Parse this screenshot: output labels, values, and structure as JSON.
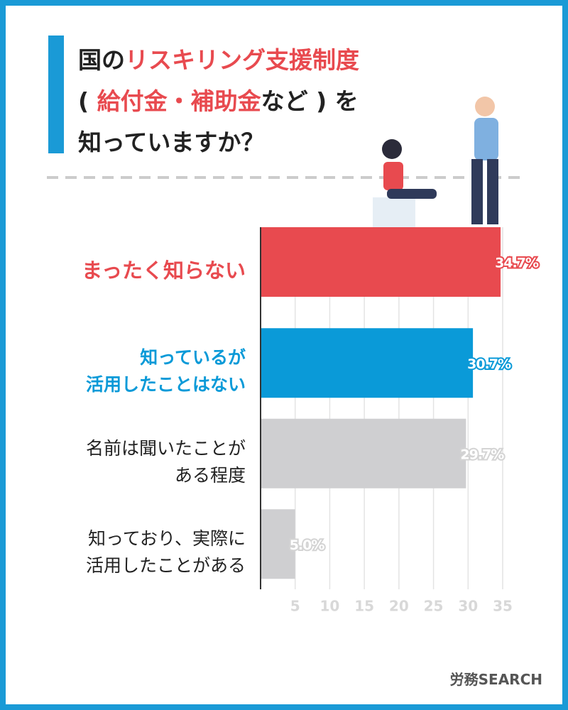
{
  "title_lines": [
    [
      {
        "text": "国の",
        "highlight": false
      },
      {
        "text": "リスキリング支援制度",
        "highlight": true
      }
    ],
    [
      {
        "text": "( ",
        "highlight": false
      },
      {
        "text": "給付金・補助金",
        "highlight": true
      },
      {
        "text": "など ) を",
        "highlight": false
      }
    ],
    [
      {
        "text": "知っていますか？",
        "highlight": false
      }
    ]
  ],
  "highlight_color": "#e84a4f",
  "chart_data": {
    "type": "hbar",
    "categories": [
      "まったく知らない",
      "知っているが\n活用したことはない",
      "名前は聞いたことが\nある程度",
      "知っており、実際に\n活用したことがある"
    ],
    "values": [
      34.7,
      30.7,
      29.7,
      5.0
    ],
    "value_labels": [
      "34.7%",
      "30.7%",
      "29.7%",
      "5.0%"
    ],
    "colors": [
      "#e84a4f",
      "#0a9ad8",
      "#cfcfd1",
      "#cfcfd1"
    ],
    "label_colors": [
      "#e84a4f",
      "#0a9ad8",
      "#222222",
      "#222222"
    ],
    "xlim": [
      0,
      35
    ],
    "xticks": [
      5,
      10,
      15,
      20,
      25,
      30,
      35
    ],
    "grid": true
  },
  "brand": "労務SEARCH"
}
